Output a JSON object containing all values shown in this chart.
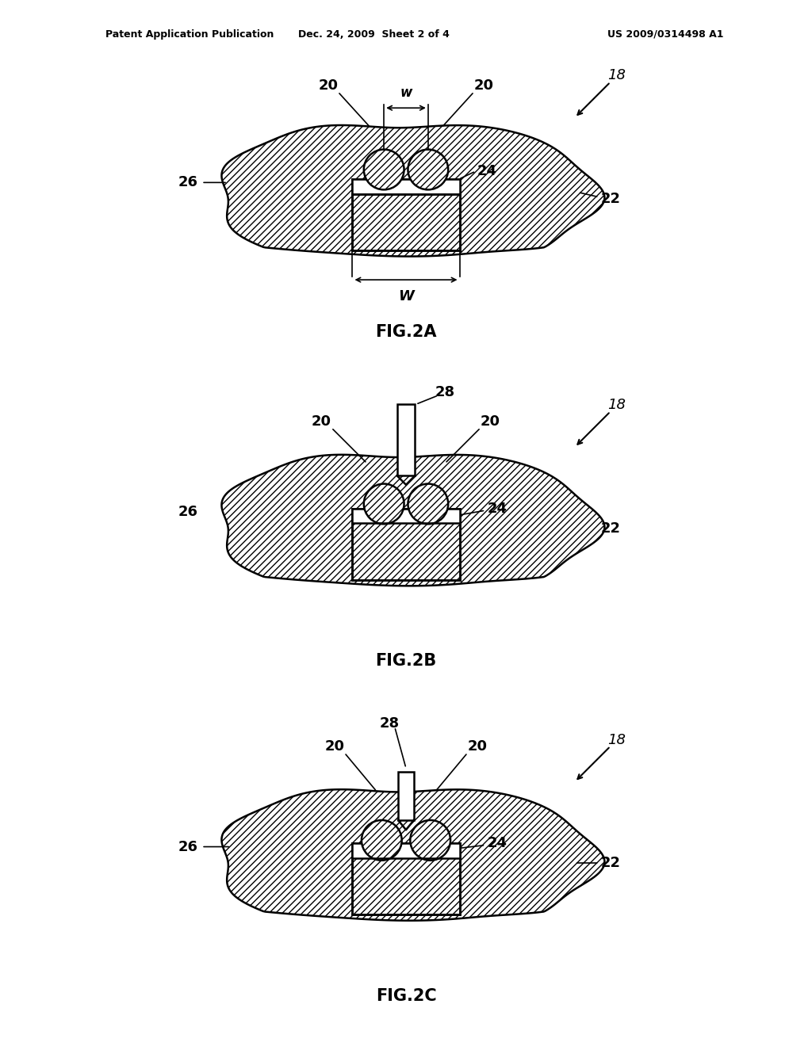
{
  "background_color": "#ffffff",
  "header_left": "Patent Application Publication",
  "header_mid": "Dec. 24, 2009  Sheet 2 of 4",
  "header_right": "US 2009/0314498 A1",
  "fig2a_label": "FIG.2A",
  "fig2b_label": "FIG.2B",
  "fig2c_label": "FIG.2C",
  "line_color": "#000000",
  "hatch_pattern": "////",
  "label_fontsize": 13,
  "number_fontsize": 13
}
